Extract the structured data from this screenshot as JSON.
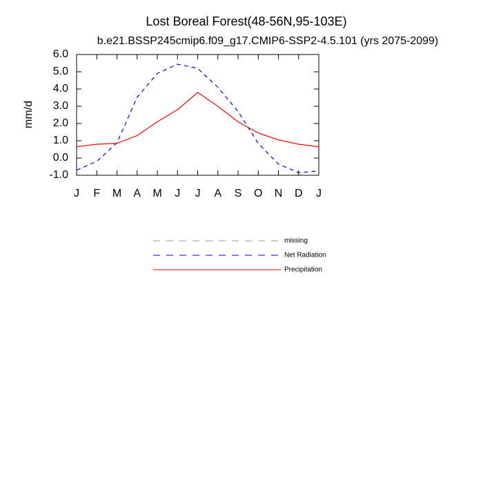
{
  "chart_data": {
    "type": "line",
    "title": "Lost Boreal Forest(48-56N,95-103E)",
    "subtitle": "b.e21.BSSP245cmip6.f09_g17.CMIP6-SSP2-4.5.101 (yrs 2075-2099)",
    "y_label": "mm/d",
    "categories": [
      "J",
      "F",
      "M",
      "A",
      "M",
      "J",
      "J",
      "A",
      "S",
      "O",
      "N",
      "D",
      "J"
    ],
    "series": [
      {
        "name": "missing",
        "color": "#999999",
        "line_style": "dashed",
        "values": [
          null,
          null,
          null,
          null,
          null,
          null,
          null,
          null,
          null,
          null,
          null,
          null,
          null
        ]
      },
      {
        "name": "Net Radiation",
        "color": "#0000ff",
        "line_style": "dashed",
        "values": [
          -0.7,
          -0.2,
          0.88,
          3.52,
          4.9,
          5.44,
          5.2,
          4.1,
          2.7,
          0.85,
          -0.35,
          -0.85,
          -0.75
        ]
      },
      {
        "name": "Precipitation",
        "color": "#ff0000",
        "line_style": "solid",
        "values": [
          0.65,
          0.8,
          0.85,
          1.3,
          2.1,
          2.8,
          3.8,
          3.0,
          2.1,
          1.45,
          1.05,
          0.8,
          0.65
        ]
      }
    ],
    "ylim": [
      -1.0,
      6.0
    ],
    "yticks": [
      {
        "value": 6,
        "label": "6.0"
      },
      {
        "value": 5,
        "label": "5.0"
      },
      {
        "value": 4,
        "label": "4.0"
      },
      {
        "value": 3,
        "label": "3.0"
      },
      {
        "value": 2,
        "label": "2.0"
      },
      {
        "value": 1,
        "label": "1.0"
      },
      {
        "value": 0,
        "label": "0.0"
      },
      {
        "value": -1,
        "label": "-1.0"
      }
    ],
    "grid": false
  }
}
